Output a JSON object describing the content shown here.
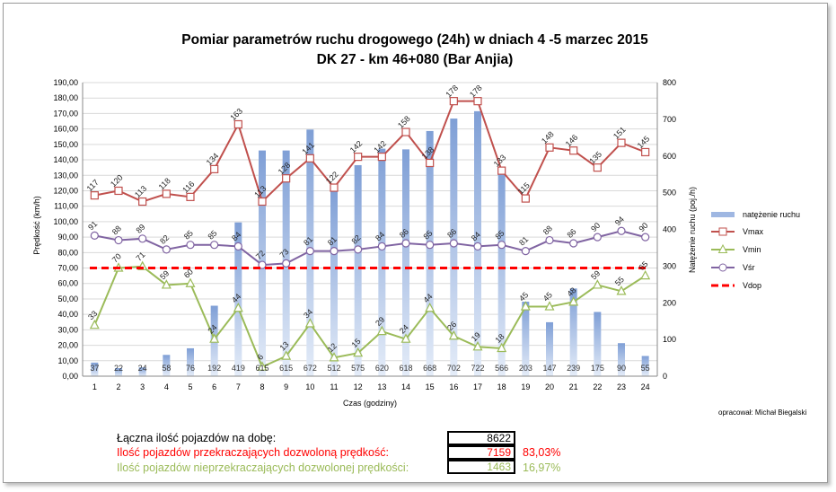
{
  "chart_data": {
    "type": "bar+line",
    "title_line1": "Pomiar parametrów ruchu drogowego (24h) w dniach 4 -5 marzec 2015",
    "title_line2": "DK 27 - km 46+080 (Bar Anjia)",
    "xlabel": "Czas (godziny)",
    "ylabel_left": "Prędkość (km/h)",
    "ylabel_right": "Natężenie ruchu (poj./h)",
    "ylim_left": [
      0,
      190
    ],
    "ylim_right": [
      0,
      800
    ],
    "ticks_left": [
      "0,00",
      "10,00",
      "20,00",
      "30,00",
      "40,00",
      "50,00",
      "60,00",
      "70,00",
      "80,00",
      "90,00",
      "100,00",
      "110,00",
      "120,00",
      "130,00",
      "140,00",
      "150,00",
      "160,00",
      "170,00",
      "180,00",
      "190,00"
    ],
    "ticks_right": [
      "0",
      "100",
      "200",
      "300",
      "400",
      "500",
      "600",
      "700",
      "800"
    ],
    "categories": [
      "1",
      "2",
      "3",
      "4",
      "5",
      "6",
      "7",
      "8",
      "9",
      "10",
      "11",
      "12",
      "13",
      "14",
      "15",
      "16",
      "17",
      "18",
      "19",
      "20",
      "21",
      "22",
      "23",
      "24"
    ],
    "series": [
      {
        "name": "natężenie ruchu",
        "axis": "right",
        "color": "#7f9fd6",
        "values": [
          37,
          22,
          24,
          58,
          76,
          192,
          419,
          615,
          615,
          672,
          512,
          575,
          620,
          618,
          668,
          702,
          722,
          566,
          203,
          147,
          239,
          175,
          90,
          55
        ]
      },
      {
        "name": "Vmax",
        "axis": "left",
        "color": "#c0504d",
        "values": [
          117,
          120,
          113,
          118,
          116,
          134,
          163,
          113,
          128,
          141,
          122,
          142,
          142,
          158,
          138,
          178,
          178,
          133,
          115,
          148,
          146,
          135,
          151,
          145
        ]
      },
      {
        "name": "Vmin",
        "axis": "left",
        "color": "#9bbb59",
        "values": [
          33,
          70,
          71,
          59,
          60,
          24,
          44,
          6,
          13,
          34,
          12,
          15,
          29,
          24,
          44,
          26,
          19,
          18,
          45,
          45,
          48,
          59,
          55,
          65
        ]
      },
      {
        "name": "Vśr",
        "axis": "left",
        "color": "#8064a2",
        "values": [
          91,
          88,
          89,
          82,
          85,
          85,
          84,
          72,
          73,
          81,
          81,
          82,
          84,
          86,
          85,
          86,
          84,
          85,
          81,
          88,
          86,
          90,
          94,
          90
        ]
      },
      {
        "name": "Vdop",
        "axis": "left",
        "color": "#ff0000",
        "values": [
          70,
          70,
          70,
          70,
          70,
          70,
          70,
          70,
          70,
          70,
          70,
          70,
          70,
          70,
          70,
          70,
          70,
          70,
          70,
          70,
          70,
          70,
          70,
          70
        ]
      }
    ],
    "legend": [
      "natężenie ruchu",
      "Vmax",
      "Vmin",
      "Vśr",
      "Vdop"
    ],
    "legend_position": "right"
  },
  "author": "opracował: Michał Biegalski",
  "summary": {
    "total_label": "Łączna ilość pojazdów na dobę:",
    "total_value": "8622",
    "over_label": "Ilość pojazdów przekraczających dozwoloną prędkość:",
    "over_value": "7159",
    "over_pct": "83,03%",
    "under_label": "Ilość pojazdów nieprzekraczających dozwolonej prędkości:",
    "under_value": "1463",
    "under_pct": "16,97%",
    "colors": {
      "total": "#000000",
      "over": "#ff0000",
      "under": "#9bbb59"
    }
  }
}
